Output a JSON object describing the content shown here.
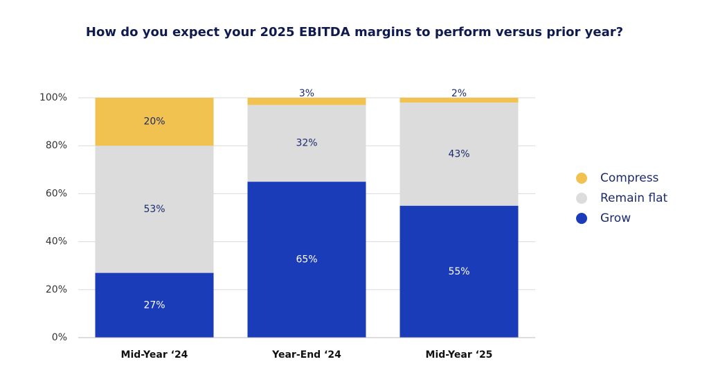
{
  "chart_data": {
    "type": "stacked_bar",
    "title": "How do you expect your 2025 EBITDA margins to perform versus prior year?",
    "categories": [
      "Mid-Year ‘24",
      "Year-End ‘24",
      "Mid-Year ‘25"
    ],
    "series": [
      {
        "name": "Grow",
        "color": "#1a3cb8",
        "values": [
          27,
          65,
          55
        ],
        "value_labels": [
          "27%",
          "65%",
          "55%"
        ]
      },
      {
        "name": "Remain flat",
        "color": "#dcdcdc",
        "values": [
          53,
          32,
          43
        ],
        "value_labels": [
          "53%",
          "32%",
          "43%"
        ]
      },
      {
        "name": "Compress",
        "color": "#f2c251",
        "values": [
          20,
          3,
          2
        ],
        "value_labels": [
          "20%",
          "3%",
          "2%"
        ]
      }
    ],
    "ylim": [
      0,
      100
    ],
    "yticks": [
      {
        "value": 0,
        "label": "0%"
      },
      {
        "value": 20,
        "label": "20%"
      },
      {
        "value": 40,
        "label": "40%"
      },
      {
        "value": 60,
        "label": "60%"
      },
      {
        "value": 80,
        "label": "80%"
      },
      {
        "value": 100,
        "label": "100%"
      }
    ],
    "grid": true,
    "legend": "right"
  }
}
